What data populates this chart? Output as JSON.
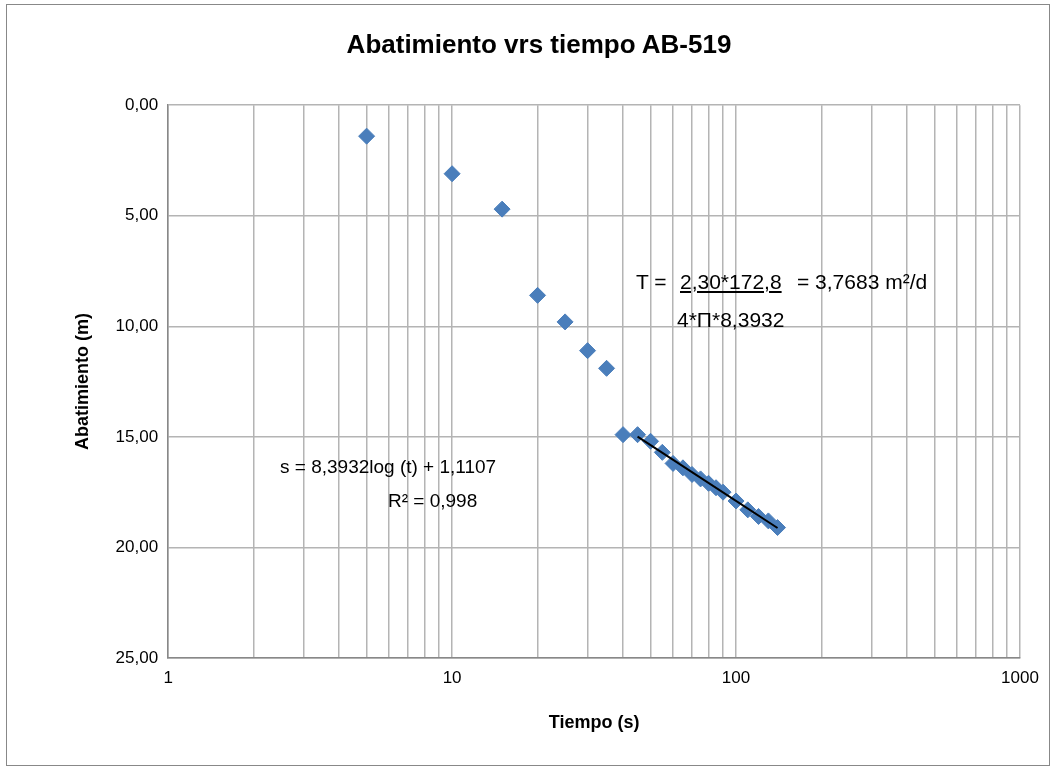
{
  "chart_data": {
    "type": "scatter",
    "title": "Abatimiento vrs tiempo AB-519",
    "xlabel": "Tiempo (s)",
    "ylabel": "Abatimiento (m)",
    "log": "x",
    "grid": true,
    "legend": false,
    "marker": "diamond",
    "xlim": [
      1,
      1000
    ],
    "xticks": [
      1,
      {
        "value": 2,
        "label": null
      },
      {
        "value": 3,
        "label": null
      },
      {
        "value": 4,
        "label": null
      },
      {
        "value": 5,
        "label": null
      },
      {
        "value": 6,
        "label": null
      },
      {
        "value": 7,
        "label": null
      },
      {
        "value": 8,
        "label": null
      },
      {
        "value": 9,
        "label": null
      },
      10,
      {
        "value": 20,
        "label": null
      },
      {
        "value": 30,
        "label": null
      },
      {
        "value": 40,
        "label": null
      },
      {
        "value": 50,
        "label": null
      },
      {
        "value": 60,
        "label": null
      },
      {
        "value": 70,
        "label": null
      },
      {
        "value": 80,
        "label": null
      },
      {
        "value": 90,
        "label": null
      },
      100,
      {
        "value": 200,
        "label": null
      },
      {
        "value": 300,
        "label": null
      },
      {
        "value": 400,
        "label": null
      },
      {
        "value": 500,
        "label": null
      },
      {
        "value": 600,
        "label": null
      },
      {
        "value": 700,
        "label": null
      },
      {
        "value": 800,
        "label": null
      },
      {
        "value": 900,
        "label": null
      },
      1000
    ],
    "ylim": [
      25,
      0
    ],
    "yticks": [
      {
        "value": 0,
        "label": "0,00"
      },
      {
        "value": 5,
        "label": "5,00"
      },
      {
        "value": 10,
        "label": "10,00"
      },
      {
        "value": 15,
        "label": "15,00"
      },
      {
        "value": 20,
        "label": "20,00"
      },
      {
        "value": 25,
        "label": "25,00"
      }
    ],
    "series": [
      {
        "type": "scatter",
        "color": "#4a7ebb",
        "x": [
          5,
          10,
          15,
          20,
          25,
          30,
          35,
          40,
          45,
          50,
          55,
          60,
          65,
          70,
          75,
          80,
          85,
          90,
          100,
          110,
          120,
          130,
          140
        ],
        "values": [
          1.4,
          3.1,
          4.7,
          8.6,
          9.8,
          11.1,
          11.9,
          14.9,
          14.9,
          15.2,
          15.7,
          16.2,
          16.4,
          16.7,
          16.9,
          17.1,
          17.3,
          17.5,
          17.9,
          18.3,
          18.6,
          18.8,
          19.1
        ]
      },
      {
        "type": "line",
        "marker": "none",
        "color": "#000000",
        "x": [
          45,
          140
        ],
        "values": [
          14.99,
          19.12
        ]
      }
    ],
    "annotations": [
      "T =",
      "2,30*172,8",
      "= 3,7683 m²/d",
      "4*Π*8,3932",
      "s = 8,3932log (t) + 1,1107",
      "R² = 0,998"
    ]
  }
}
